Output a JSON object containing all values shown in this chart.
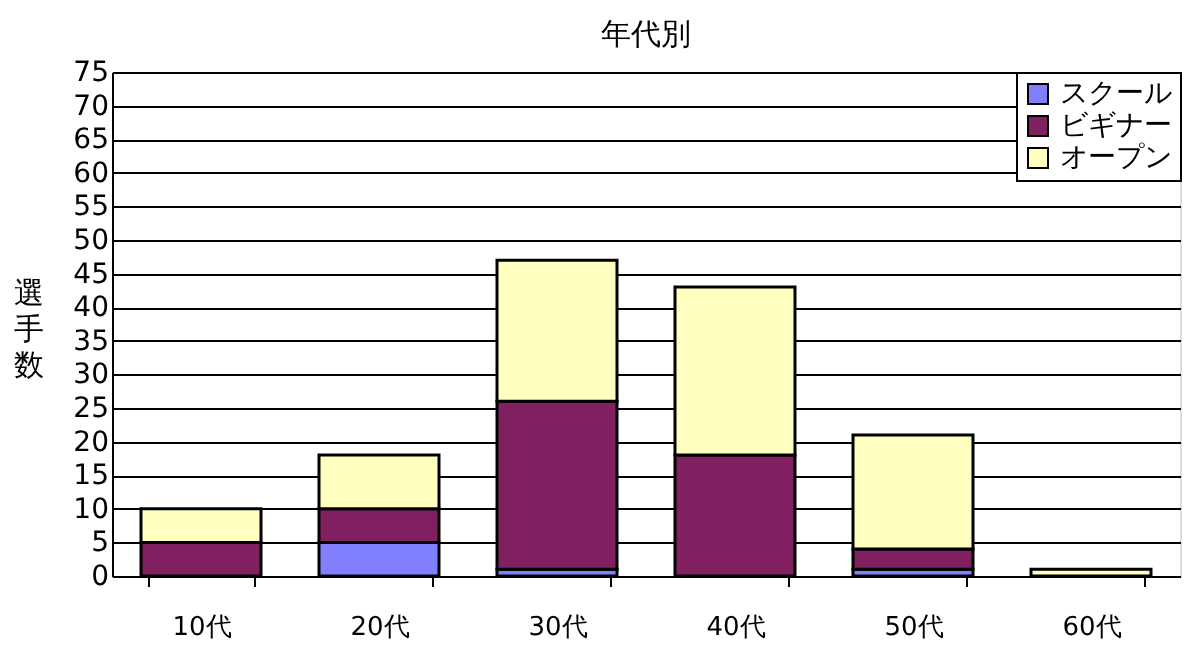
{
  "chart_data": {
    "type": "bar",
    "title": "年代別",
    "ylabel": "選手数",
    "stacked": true,
    "categories": [
      "10代",
      "20代",
      "30代",
      "40代",
      "50代",
      "60代"
    ],
    "series": [
      {
        "name": "スクール",
        "color": "#8080ff",
        "values": [
          0,
          5,
          1,
          0,
          1,
          0
        ]
      },
      {
        "name": "ビギナー",
        "color": "#802060",
        "values": [
          5,
          5,
          25,
          18,
          3,
          0
        ]
      },
      {
        "name": "オープン",
        "color": "#ffffc0",
        "values": [
          5,
          8,
          21,
          25,
          17,
          1
        ]
      }
    ],
    "ylim": [
      0,
      75
    ],
    "yticks": [
      0,
      5,
      10,
      15,
      20,
      25,
      30,
      35,
      40,
      45,
      50,
      55,
      60,
      65,
      70,
      75
    ],
    "grid": "y",
    "legend": "top right"
  }
}
